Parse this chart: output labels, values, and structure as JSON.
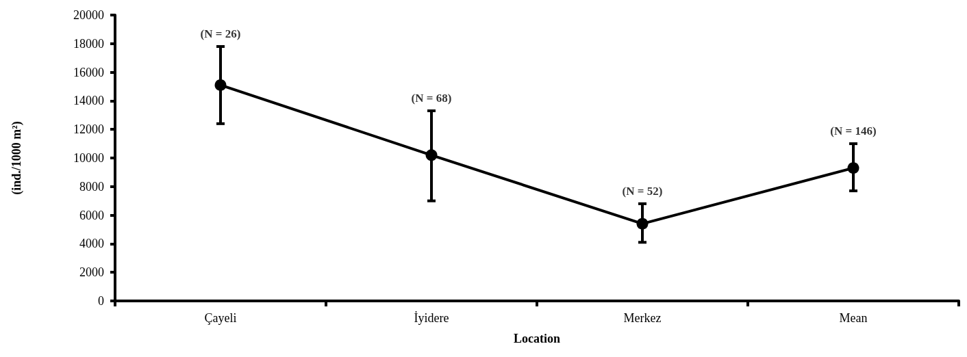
{
  "chart_data": {
    "type": "line",
    "xlabel": "Location",
    "ylabel": "(ind./1000 m²)",
    "categories": [
      "Çayeli",
      "İyidere",
      "Merkez",
      "Mean"
    ],
    "series": [
      {
        "color": "#000000",
        "values": [
          15100,
          10200,
          5400,
          9300
        ],
        "errors": [
          [
            12400,
            17800
          ],
          [
            7000,
            13300
          ],
          [
            4100,
            6800
          ],
          [
            7700,
            11000
          ]
        ]
      }
    ],
    "ylim": [
      0,
      20000
    ],
    "yticks": [
      0,
      2000,
      4000,
      6000,
      8000,
      10000,
      12000,
      14000,
      16000,
      18000,
      20000
    ],
    "annotations": [
      {
        "text": "(N = 26)",
        "x": "Çayeli",
        "y": 17800
      },
      {
        "text": "(N = 68)",
        "x": "İyidere",
        "y": 13300
      },
      {
        "text": "(N = 52)",
        "x": "Merkez",
        "y": 6800
      },
      {
        "text": "(N = 146)",
        "x": "Mean",
        "y": 11000
      }
    ],
    "marker": "circle",
    "line_style": "solid"
  }
}
